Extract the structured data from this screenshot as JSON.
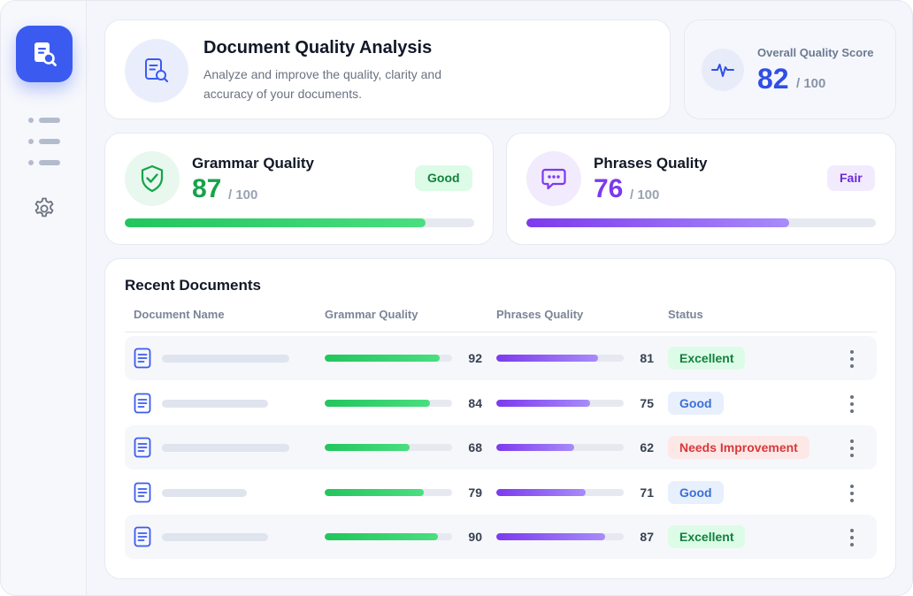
{
  "header": {
    "title": "Document Quality Analysis",
    "description": "Analyze and improve the quality, clarity and accuracy of your documents."
  },
  "overall": {
    "label": "Overall Quality Score",
    "score": "82",
    "max": "/ 100"
  },
  "grammar": {
    "title": "Grammar Quality",
    "score": "87",
    "max": "/ 100",
    "badge": "Good",
    "progress": 0.87,
    "color": "#16a34a"
  },
  "phrases": {
    "title": "Phrases Quality",
    "score": "76",
    "max": "/ 100",
    "badge": "Fair",
    "progress": 0.76,
    "color": "#7c3aed"
  },
  "recent": {
    "title": "Recent Documents",
    "columns": [
      "Document Name",
      "Grammar Quality",
      "Phrases Quality",
      "Status"
    ],
    "rows": [
      {
        "grammar": "92",
        "phrases": "81",
        "status": "Excellent",
        "status_type": "excellent"
      },
      {
        "grammar": "84",
        "phrases": "75",
        "status": "Good",
        "status_type": "good"
      },
      {
        "grammar": "68",
        "phrases": "62",
        "status": "Needs Improvement",
        "status_type": "needs"
      },
      {
        "grammar": "79",
        "phrases": "71",
        "status": "Good",
        "status_type": "good"
      },
      {
        "grammar": "90",
        "phrases": "87",
        "status": "Excellent",
        "status_type": "excellent"
      }
    ]
  },
  "icons": {
    "logo": "document-search-icon",
    "menu": "list-icon",
    "settings": "gear-icon",
    "header": "document-search-icon",
    "overall": "pulse-icon",
    "grammar": "shield-check-icon",
    "phrases": "chat-bubble-icon",
    "row": "document-icon",
    "row_menu": "kebab-menu-icon"
  }
}
